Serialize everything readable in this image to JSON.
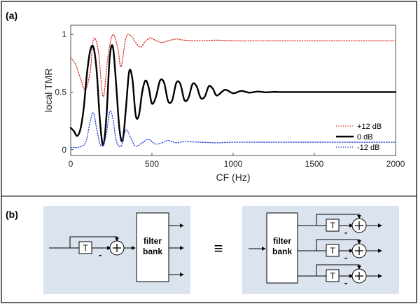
{
  "panels": {
    "a_label": "(a)",
    "b_label": "(b)"
  },
  "chart_data": {
    "type": "line",
    "xlabel": "CF (Hz)",
    "ylabel": "local TMR",
    "xlim": [
      0,
      2000
    ],
    "ylim": [
      -0.05,
      1.08
    ],
    "x_ticks": [
      "0",
      "500",
      "1000",
      "1500",
      "2000"
    ],
    "y_ticks": [
      "0",
      "0.5",
      "1"
    ],
    "grid": false,
    "legend_position": "bottom-right",
    "series": [
      {
        "name": "+12 dB",
        "color": "#d62d20",
        "style": "dotted",
        "x": [
          0,
          30,
          60,
          90,
          120,
          140,
          170,
          200,
          230,
          260,
          290,
          310,
          340,
          370,
          400,
          430,
          460,
          490,
          520,
          560,
          600,
          650,
          700,
          800,
          900,
          1000,
          1200,
          1500,
          2000
        ],
        "y": [
          0.8,
          0.74,
          0.62,
          0.52,
          0.68,
          0.96,
          0.86,
          0.46,
          0.82,
          1.0,
          0.88,
          0.72,
          0.97,
          0.99,
          0.93,
          0.89,
          0.94,
          0.97,
          0.95,
          0.93,
          0.945,
          0.96,
          0.95,
          0.945,
          0.95,
          0.945,
          0.945,
          0.945,
          0.945
        ]
      },
      {
        "name": "0 dB",
        "color": "#000000",
        "style": "solid",
        "x": [
          0,
          20,
          40,
          60,
          80,
          100,
          120,
          140,
          160,
          180,
          200,
          220,
          240,
          260,
          280,
          300,
          320,
          340,
          360,
          380,
          400,
          420,
          440,
          460,
          480,
          500,
          525,
          550,
          575,
          600,
          625,
          650,
          675,
          700,
          725,
          750,
          775,
          800,
          825,
          850,
          875,
          900,
          950,
          1000,
          1050,
          1100,
          1150,
          1200,
          1250,
          1300,
          1400,
          1500,
          1600,
          1700,
          1800,
          1900,
          2000
        ],
        "y": [
          0.19,
          0.16,
          0.12,
          0.18,
          0.36,
          0.66,
          0.86,
          0.89,
          0.68,
          0.25,
          0.04,
          0.29,
          0.8,
          0.89,
          0.56,
          0.18,
          0.08,
          0.36,
          0.68,
          0.61,
          0.3,
          0.3,
          0.5,
          0.6,
          0.54,
          0.4,
          0.46,
          0.6,
          0.58,
          0.42,
          0.43,
          0.58,
          0.57,
          0.43,
          0.45,
          0.57,
          0.55,
          0.45,
          0.46,
          0.55,
          0.53,
          0.47,
          0.52,
          0.49,
          0.51,
          0.495,
          0.505,
          0.498,
          0.502,
          0.5,
          0.5,
          0.5,
          0.5,
          0.5,
          0.5,
          0.5,
          0.5
        ]
      },
      {
        "name": "-12 dB",
        "color": "#1f3fd6",
        "style": "dotted",
        "x": [
          0,
          40,
          80,
          100,
          120,
          140,
          160,
          180,
          200,
          220,
          240,
          260,
          280,
          310,
          340,
          370,
          400,
          440,
          480,
          520,
          560,
          600,
          650,
          700,
          800,
          900,
          1000,
          1200,
          1500,
          2000
        ],
        "y": [
          0.02,
          0.02,
          0.04,
          0.1,
          0.25,
          0.32,
          0.18,
          0.05,
          0.04,
          0.14,
          0.33,
          0.27,
          0.08,
          0.03,
          0.17,
          0.1,
          0.03,
          0.06,
          0.09,
          0.05,
          0.06,
          0.08,
          0.06,
          0.07,
          0.065,
          0.06,
          0.065,
          0.065,
          0.065,
          0.065
        ]
      }
    ]
  },
  "diagram": {
    "left": {
      "delay_label": "T",
      "minus_label": "-",
      "sum_label": "+",
      "block_label_line1": "filter",
      "block_label_line2": "bank"
    },
    "equivalence_symbol": "≡",
    "right": {
      "block_label_line1": "filter",
      "block_label_line2": "bank",
      "delay_label": "T",
      "minus_label": "-",
      "sum_label": "+"
    },
    "background_color": "#dbe3ef"
  }
}
